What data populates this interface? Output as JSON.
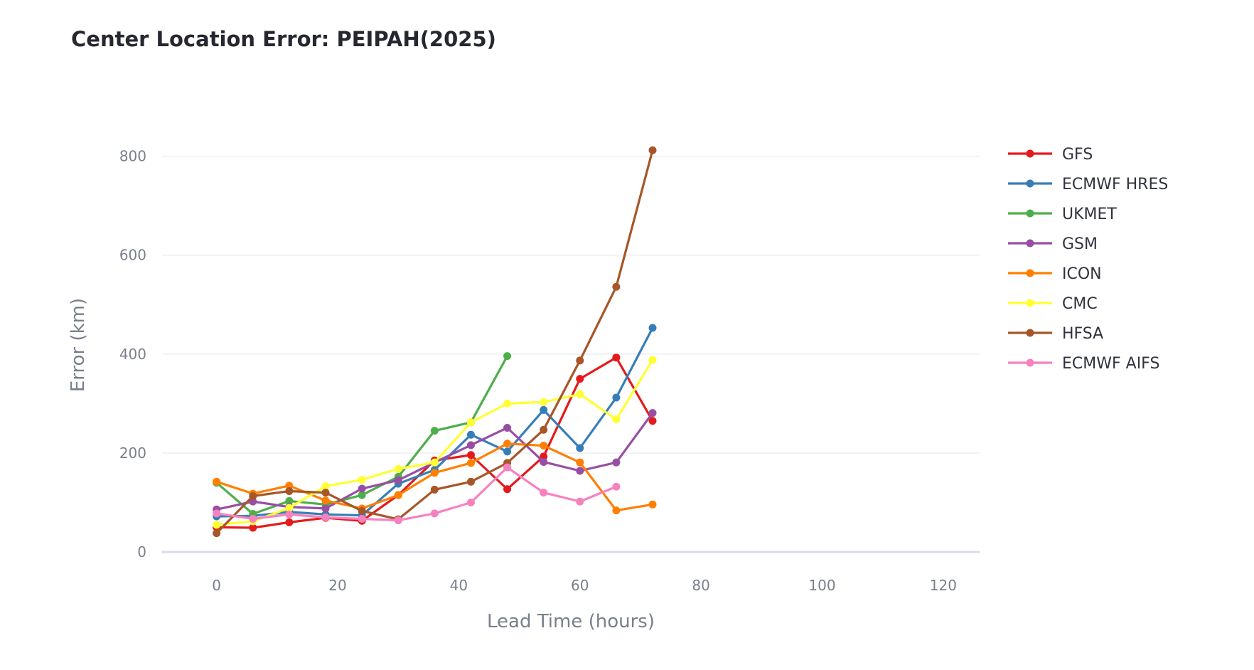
{
  "title": "Center Location Error: PEIPAH(2025)",
  "chart_data": {
    "type": "line",
    "title": "Center Location Error: PEIPAH(2025)",
    "xlabel": "Lead Time (hours)",
    "ylabel": "Error (km)",
    "xlim": [
      -9,
      126
    ],
    "ylim": [
      -20,
      900
    ],
    "x_ticks": [
      0,
      20,
      40,
      60,
      80,
      100,
      120
    ],
    "y_ticks": [
      0,
      200,
      400,
      600,
      800
    ],
    "grid": "horizontal",
    "legend_position": "right",
    "series": [
      {
        "name": "GFS",
        "color": "#e41a1c",
        "x": [
          0,
          6,
          12,
          18,
          24,
          30,
          36,
          42,
          48,
          54,
          60,
          66,
          72
        ],
        "y": [
          50,
          49,
          60,
          69,
          63,
          115,
          185,
          196,
          127,
          193,
          350,
          393,
          265
        ]
      },
      {
        "name": "ECMWF HRES",
        "color": "#377eb8",
        "x": [
          0,
          6,
          12,
          18,
          24,
          30,
          36,
          42,
          48,
          54,
          60,
          66,
          72
        ],
        "y": [
          72,
          73,
          81,
          76,
          74,
          138,
          166,
          237,
          203,
          287,
          210,
          312,
          453
        ]
      },
      {
        "name": "UKMET",
        "color": "#4daf4a",
        "x": [
          0,
          6,
          12,
          18,
          24,
          30,
          36,
          42,
          48
        ],
        "y": [
          140,
          77,
          103,
          96,
          115,
          152,
          245,
          262,
          396
        ]
      },
      {
        "name": "GSM",
        "color": "#984ea3",
        "x": [
          0,
          6,
          12,
          18,
          24,
          30,
          36,
          42,
          48,
          54,
          60,
          66,
          72
        ],
        "y": [
          86,
          102,
          91,
          88,
          128,
          145,
          181,
          216,
          251,
          182,
          164,
          181,
          281
        ]
      },
      {
        "name": "ICON",
        "color": "#ff7f00",
        "x": [
          0,
          6,
          12,
          18,
          24,
          30,
          36,
          42,
          48,
          54,
          60,
          66,
          72
        ],
        "y": [
          142,
          118,
          134,
          104,
          88,
          115,
          160,
          180,
          219,
          215,
          181,
          84,
          96
        ]
      },
      {
        "name": "CMC",
        "color": "#ffff33",
        "x": [
          0,
          6,
          12,
          18,
          24,
          30,
          36,
          42,
          48,
          54,
          60,
          66,
          72
        ],
        "y": [
          55,
          62,
          89,
          133,
          146,
          168,
          181,
          262,
          300,
          303,
          319,
          268,
          388
        ]
      },
      {
        "name": "HFSA",
        "color": "#a65628",
        "x": [
          0,
          6,
          12,
          18,
          24,
          30,
          36,
          42,
          48,
          54,
          60,
          66,
          72
        ],
        "y": [
          38,
          113,
          123,
          120,
          83,
          66,
          126,
          142,
          180,
          247,
          387,
          536,
          812
        ]
      },
      {
        "name": "ECMWF AIFS",
        "color": "#f781bf",
        "x": [
          0,
          6,
          12,
          18,
          24,
          30,
          36,
          42,
          48,
          54,
          60,
          66
        ],
        "y": [
          78,
          67,
          76,
          70,
          67,
          64,
          78,
          100,
          171,
          120,
          102,
          132
        ]
      }
    ]
  }
}
